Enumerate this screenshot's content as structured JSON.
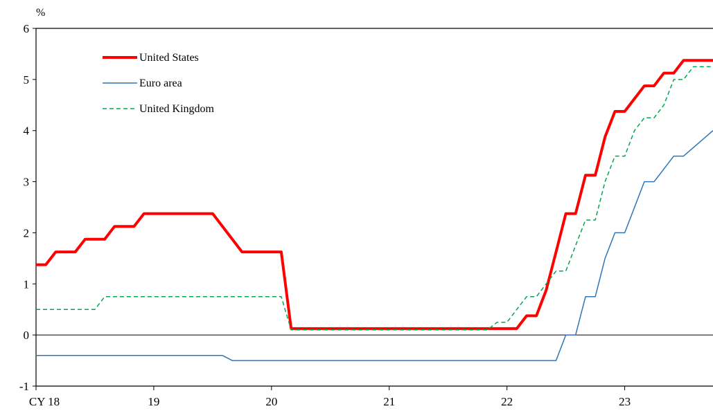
{
  "chart_data": {
    "type": "line",
    "title": "",
    "ylabel": "%",
    "xlabel": "",
    "ylim": [
      -1,
      6
    ],
    "yticks": [
      -1,
      0,
      1,
      2,
      3,
      4,
      5,
      6
    ],
    "xlim": [
      2018.0,
      2023.75
    ],
    "xticks": [
      {
        "x": 2018,
        "label": "CY 18"
      },
      {
        "x": 2019,
        "label": "19"
      },
      {
        "x": 2020,
        "label": "20"
      },
      {
        "x": 2021,
        "label": "21"
      },
      {
        "x": 2022,
        "label": "22"
      },
      {
        "x": 2023,
        "label": "23"
      }
    ],
    "grid": false,
    "zero_line": true,
    "legend_position": "top-left",
    "series": [
      {
        "name": "United States",
        "color": "#ff0000",
        "style": "solid-thick",
        "points": [
          [
            2018.0,
            1.375
          ],
          [
            2018.083,
            1.375
          ],
          [
            2018.167,
            1.625
          ],
          [
            2018.333,
            1.625
          ],
          [
            2018.417,
            1.875
          ],
          [
            2018.583,
            1.875
          ],
          [
            2018.667,
            2.125
          ],
          [
            2018.833,
            2.125
          ],
          [
            2018.917,
            2.375
          ],
          [
            2019.5,
            2.375
          ],
          [
            2019.75,
            1.625
          ],
          [
            2020.083,
            1.625
          ],
          [
            2020.167,
            0.125
          ],
          [
            2022.083,
            0.125
          ],
          [
            2022.167,
            0.375
          ],
          [
            2022.25,
            0.375
          ],
          [
            2022.333,
            0.875
          ],
          [
            2022.417,
            1.625
          ],
          [
            2022.5,
            2.375
          ],
          [
            2022.583,
            2.375
          ],
          [
            2022.667,
            3.125
          ],
          [
            2022.75,
            3.125
          ],
          [
            2022.833,
            3.875
          ],
          [
            2022.917,
            4.375
          ],
          [
            2023.0,
            4.375
          ],
          [
            2023.167,
            4.875
          ],
          [
            2023.25,
            4.875
          ],
          [
            2023.333,
            5.125
          ],
          [
            2023.417,
            5.125
          ],
          [
            2023.5,
            5.375
          ],
          [
            2023.75,
            5.375
          ]
        ]
      },
      {
        "name": "Euro area",
        "color": "#2e75b6",
        "style": "solid-thin",
        "points": [
          [
            2018.0,
            -0.4
          ],
          [
            2019.583,
            -0.4
          ],
          [
            2019.667,
            -0.5
          ],
          [
            2022.417,
            -0.5
          ],
          [
            2022.5,
            0.0
          ],
          [
            2022.583,
            0.0
          ],
          [
            2022.667,
            0.75
          ],
          [
            2022.75,
            0.75
          ],
          [
            2022.833,
            1.5
          ],
          [
            2022.917,
            2.0
          ],
          [
            2023.0,
            2.0
          ],
          [
            2023.167,
            3.0
          ],
          [
            2023.25,
            3.0
          ],
          [
            2023.417,
            3.5
          ],
          [
            2023.5,
            3.5
          ],
          [
            2023.75,
            4.0
          ]
        ]
      },
      {
        "name": "United Kingdom",
        "color": "#00a651",
        "style": "dashed",
        "points": [
          [
            2018.0,
            0.5
          ],
          [
            2018.5,
            0.5
          ],
          [
            2018.583,
            0.75
          ],
          [
            2020.083,
            0.75
          ],
          [
            2020.167,
            0.1
          ],
          [
            2021.833,
            0.1
          ],
          [
            2021.917,
            0.25
          ],
          [
            2022.0,
            0.25
          ],
          [
            2022.083,
            0.5
          ],
          [
            2022.167,
            0.75
          ],
          [
            2022.25,
            0.75
          ],
          [
            2022.333,
            1.0
          ],
          [
            2022.417,
            1.25
          ],
          [
            2022.5,
            1.25
          ],
          [
            2022.583,
            1.75
          ],
          [
            2022.667,
            2.25
          ],
          [
            2022.75,
            2.25
          ],
          [
            2022.833,
            3.0
          ],
          [
            2022.917,
            3.5
          ],
          [
            2023.0,
            3.5
          ],
          [
            2023.083,
            4.0
          ],
          [
            2023.167,
            4.25
          ],
          [
            2023.25,
            4.25
          ],
          [
            2023.333,
            4.5
          ],
          [
            2023.417,
            5.0
          ],
          [
            2023.5,
            5.0
          ],
          [
            2023.583,
            5.25
          ],
          [
            2023.75,
            5.25
          ]
        ]
      }
    ]
  }
}
